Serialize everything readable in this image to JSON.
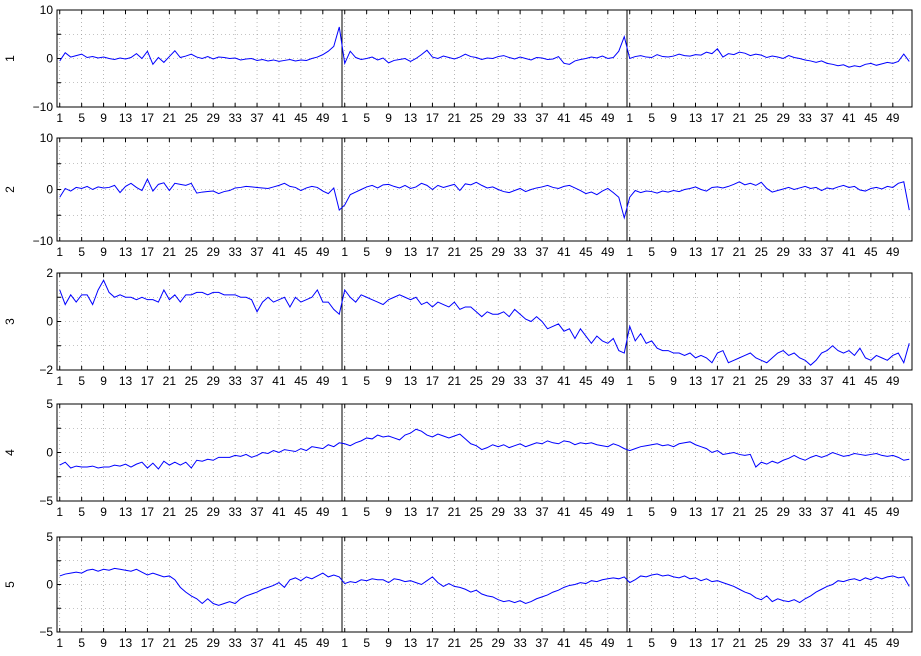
{
  "chart_data": {
    "type": "line",
    "layout": "5 stacked panels, each with 3 concatenated segments of 52 points; vertical divider lines between segments",
    "grid": "dotted",
    "line_color": "#0000ff",
    "x_tick_labels": [
      "1",
      "5",
      "9",
      "13",
      "17",
      "21",
      "25",
      "29",
      "33",
      "37",
      "41",
      "45",
      "49"
    ],
    "segments_per_panel": 3,
    "points_per_segment": 52,
    "panels": [
      {
        "ylabel": "1",
        "ylim": [
          -10,
          10
        ],
        "yticks": [
          -10,
          0,
          10
        ],
        "ytick_labels": [
          "−10",
          "0",
          "10"
        ],
        "series": [
          [
            -0.5,
            1.2,
            0.3,
            0.6,
            0.9,
            0.2,
            0.4,
            0.1,
            0.3,
            0.0,
            -0.2,
            0.1,
            -0.1,
            0.2,
            1.0,
            0.0,
            1.5,
            -1.2,
            0.2,
            -0.8,
            0.4,
            1.6,
            0.2,
            0.5,
            0.9,
            0.3,
            0.0,
            0.4,
            -0.1,
            0.3,
            0.2,
            0.0,
            0.1,
            -0.3,
            -0.1,
            0.0,
            -0.4,
            -0.2,
            -0.5,
            -0.3,
            -0.6,
            -0.4,
            -0.2,
            -0.5,
            -0.3,
            -0.4,
            0.0,
            0.3,
            0.8,
            1.5,
            2.5,
            6.5
          ],
          [
            -1.0,
            1.5,
            0.2,
            -0.2,
            0.0,
            0.3,
            -0.3,
            0.1,
            -0.9,
            -0.4,
            -0.2,
            0.0,
            -0.6,
            0.0,
            0.8,
            1.7,
            0.3,
            0.0,
            0.5,
            0.2,
            -0.1,
            0.3,
            0.9,
            0.4,
            0.2,
            -0.2,
            0.1,
            0.0,
            0.4,
            0.6,
            0.2,
            -0.1,
            0.3,
            0.0,
            -0.3,
            0.2,
            0.1,
            -0.2,
            -0.1,
            0.4,
            -1.0,
            -1.2,
            -0.5,
            -0.2,
            0.0,
            0.3,
            0.1,
            0.5,
            0.0,
            0.2,
            1.5,
            4.5
          ],
          [
            0.0,
            0.4,
            0.6,
            0.3,
            0.2,
            0.8,
            0.4,
            0.3,
            0.5,
            0.9,
            0.6,
            0.5,
            0.8,
            0.7,
            1.3,
            1.0,
            2.0,
            0.3,
            1.0,
            0.8,
            1.3,
            1.1,
            0.6,
            0.9,
            0.7,
            0.2,
            0.5,
            0.3,
            0.0,
            0.6,
            0.2,
            0.0,
            -0.3,
            -0.5,
            -0.8,
            -0.5,
            -1.0,
            -1.2,
            -1.5,
            -1.3,
            -1.8,
            -1.5,
            -1.7,
            -1.2,
            -1.0,
            -1.4,
            -1.1,
            -0.8,
            -1.0,
            -0.6,
            0.9,
            -0.6
          ]
        ]
      },
      {
        "ylabel": "2",
        "ylim": [
          -10,
          10
        ],
        "yticks": [
          -10,
          0,
          10
        ],
        "ytick_labels": [
          "−10",
          "0",
          "10"
        ],
        "series": [
          [
            -1.5,
            0.2,
            -0.3,
            0.4,
            0.2,
            0.6,
            0.0,
            0.5,
            0.3,
            0.4,
            0.8,
            -0.6,
            0.6,
            1.2,
            0.4,
            -0.2,
            2.0,
            -0.3,
            1.0,
            1.3,
            -0.2,
            1.2,
            1.0,
            0.8,
            1.2,
            -0.7,
            -0.5,
            -0.4,
            -0.3,
            -0.8,
            -0.4,
            -0.2,
            0.3,
            0.4,
            0.6,
            0.5,
            0.4,
            0.3,
            0.2,
            0.5,
            0.8,
            1.2,
            0.6,
            0.4,
            -0.2,
            0.3,
            0.6,
            0.4,
            -0.3,
            -0.8,
            0.3,
            -4.0
          ],
          [
            -3.0,
            -1.0,
            -0.5,
            0.0,
            0.5,
            0.8,
            0.3,
            0.9,
            1.0,
            0.6,
            0.3,
            0.8,
            0.2,
            0.5,
            1.2,
            0.8,
            0.0,
            0.8,
            0.4,
            0.7,
            1.0,
            -0.2,
            1.1,
            0.9,
            1.4,
            0.8,
            0.3,
            0.5,
            0.0,
            -0.4,
            -0.6,
            -0.2,
            0.2,
            -0.4,
            0.0,
            0.3,
            0.5,
            0.8,
            0.4,
            0.2,
            0.6,
            0.8,
            0.3,
            -0.2,
            -0.8,
            -0.5,
            -1.0,
            -0.3,
            0.2,
            -0.6,
            -1.5,
            -5.5
          ],
          [
            -1.5,
            -0.2,
            -0.6,
            -0.3,
            -0.4,
            -0.7,
            -0.3,
            -0.5,
            -0.2,
            -0.4,
            0.0,
            0.2,
            0.5,
            0.0,
            -0.3,
            0.4,
            0.5,
            0.3,
            0.6,
            1.0,
            1.5,
            0.9,
            1.2,
            0.8,
            1.4,
            0.2,
            -0.5,
            -0.2,
            0.1,
            0.4,
            0.0,
            0.3,
            0.6,
            0.2,
            0.4,
            -0.2,
            0.3,
            0.1,
            0.5,
            0.8,
            0.4,
            0.6,
            -0.1,
            -0.3,
            0.2,
            0.4,
            0.1,
            0.6,
            0.4,
            1.2,
            1.5,
            -4.0
          ]
        ]
      },
      {
        "ylabel": "3",
        "ylim": [
          -2,
          2
        ],
        "yticks": [
          -2,
          0,
          2
        ],
        "ytick_labels": [
          "−2",
          "0",
          "2"
        ],
        "series": [
          [
            1.3,
            0.7,
            1.1,
            0.8,
            1.1,
            1.1,
            0.7,
            1.3,
            1.7,
            1.2,
            1.0,
            1.1,
            1.0,
            1.0,
            0.9,
            1.0,
            0.9,
            0.9,
            0.8,
            1.3,
            0.9,
            1.1,
            0.8,
            1.1,
            1.1,
            1.2,
            1.2,
            1.1,
            1.2,
            1.2,
            1.1,
            1.1,
            1.1,
            1.0,
            1.0,
            0.9,
            0.4,
            0.8,
            1.0,
            0.8,
            0.9,
            1.0,
            0.6,
            1.0,
            0.8,
            0.9,
            1.0,
            1.3,
            0.8,
            0.8,
            0.5,
            0.3
          ],
          [
            1.3,
            1.0,
            0.8,
            1.1,
            1.0,
            0.9,
            0.8,
            0.7,
            0.9,
            1.0,
            1.1,
            1.0,
            0.9,
            1.0,
            0.7,
            0.8,
            0.6,
            0.8,
            0.7,
            0.6,
            0.8,
            0.5,
            0.6,
            0.6,
            0.4,
            0.2,
            0.4,
            0.3,
            0.3,
            0.4,
            0.2,
            0.5,
            0.3,
            0.1,
            0.0,
            0.2,
            0.0,
            -0.3,
            -0.2,
            -0.1,
            -0.4,
            -0.3,
            -0.7,
            -0.3,
            -0.6,
            -0.9,
            -0.6,
            -0.8,
            -0.9,
            -0.7,
            -1.2,
            -1.3
          ],
          [
            -0.2,
            -0.8,
            -0.5,
            -0.9,
            -0.8,
            -1.1,
            -1.2,
            -1.2,
            -1.3,
            -1.3,
            -1.4,
            -1.3,
            -1.5,
            -1.4,
            -1.5,
            -1.7,
            -1.3,
            -1.2,
            -1.7,
            -1.6,
            -1.5,
            -1.4,
            -1.3,
            -1.5,
            -1.6,
            -1.7,
            -1.5,
            -1.3,
            -1.2,
            -1.4,
            -1.3,
            -1.5,
            -1.6,
            -1.8,
            -1.6,
            -1.3,
            -1.2,
            -1.0,
            -1.2,
            -1.3,
            -1.2,
            -1.4,
            -1.1,
            -1.5,
            -1.6,
            -1.4,
            -1.5,
            -1.6,
            -1.4,
            -1.3,
            -1.7,
            -0.9
          ]
        ]
      },
      {
        "ylabel": "4",
        "ylim": [
          -5,
          5
        ],
        "yticks": [
          -5,
          0,
          5
        ],
        "ytick_labels": [
          "−5",
          "0",
          "5"
        ],
        "series": [
          [
            -1.3,
            -1.0,
            -1.6,
            -1.4,
            -1.5,
            -1.5,
            -1.4,
            -1.6,
            -1.5,
            -1.5,
            -1.3,
            -1.4,
            -1.2,
            -1.5,
            -1.2,
            -1.0,
            -1.6,
            -1.1,
            -1.7,
            -0.9,
            -1.3,
            -1.0,
            -1.3,
            -1.0,
            -1.6,
            -0.8,
            -0.9,
            -0.7,
            -0.8,
            -0.5,
            -0.5,
            -0.5,
            -0.3,
            -0.4,
            -0.2,
            -0.5,
            -0.3,
            0.0,
            -0.1,
            0.2,
            0.0,
            0.3,
            0.2,
            0.1,
            0.4,
            0.2,
            0.6,
            0.5,
            0.4,
            0.8,
            0.6,
            1.0
          ],
          [
            0.9,
            0.7,
            1.0,
            1.2,
            1.5,
            1.4,
            1.8,
            1.6,
            1.7,
            1.5,
            1.3,
            1.8,
            2.0,
            2.4,
            2.2,
            1.8,
            1.6,
            1.9,
            1.7,
            1.5,
            1.7,
            1.9,
            1.4,
            0.9,
            0.7,
            0.3,
            0.5,
            0.8,
            0.6,
            0.8,
            0.5,
            0.7,
            0.9,
            0.6,
            0.8,
            1.0,
            0.9,
            1.2,
            1.0,
            0.9,
            1.2,
            1.1,
            0.8,
            1.0,
            0.9,
            1.0,
            0.8,
            0.7,
            0.6,
            0.9,
            0.7,
            0.4
          ],
          [
            0.2,
            0.4,
            0.6,
            0.7,
            0.8,
            0.9,
            0.7,
            0.8,
            0.6,
            0.9,
            1.0,
            1.1,
            0.8,
            0.6,
            0.4,
            0.0,
            0.2,
            -0.2,
            -0.1,
            0.0,
            -0.2,
            -0.3,
            -0.2,
            -1.5,
            -1.0,
            -1.2,
            -0.9,
            -1.1,
            -0.8,
            -0.6,
            -0.3,
            -0.6,
            -0.8,
            -0.5,
            -0.3,
            -0.5,
            -0.3,
            0.0,
            -0.2,
            -0.4,
            -0.3,
            -0.1,
            -0.2,
            -0.3,
            -0.2,
            -0.1,
            -0.3,
            -0.4,
            -0.3,
            -0.5,
            -0.8,
            -0.7
          ]
        ]
      },
      {
        "ylabel": "5",
        "ylim": [
          -5,
          5
        ],
        "yticks": [
          -5,
          0,
          5
        ],
        "ytick_labels": [
          "−5",
          "0",
          "5"
        ],
        "series": [
          [
            0.9,
            1.1,
            1.2,
            1.3,
            1.2,
            1.5,
            1.6,
            1.4,
            1.6,
            1.5,
            1.7,
            1.6,
            1.5,
            1.4,
            1.6,
            1.3,
            1.0,
            1.2,
            1.0,
            0.8,
            0.9,
            0.5,
            -0.3,
            -0.8,
            -1.2,
            -1.5,
            -2.0,
            -1.5,
            -2.0,
            -2.2,
            -2.0,
            -1.8,
            -2.0,
            -1.5,
            -1.2,
            -1.0,
            -0.8,
            -0.5,
            -0.3,
            -0.1,
            0.2,
            -0.3,
            0.5,
            0.7,
            0.4,
            0.8,
            0.6,
            0.9,
            1.2,
            0.8,
            1.0,
            0.8
          ],
          [
            0.1,
            0.3,
            0.2,
            0.5,
            0.4,
            0.6,
            0.5,
            0.5,
            0.2,
            0.6,
            0.5,
            0.3,
            0.4,
            0.2,
            0.0,
            0.4,
            0.8,
            0.2,
            -0.2,
            0.1,
            -0.2,
            -0.3,
            -0.5,
            -0.8,
            -0.6,
            -1.0,
            -1.2,
            -1.3,
            -1.6,
            -1.8,
            -1.7,
            -1.9,
            -1.7,
            -2.0,
            -1.8,
            -1.5,
            -1.3,
            -1.1,
            -0.8,
            -0.6,
            -0.3,
            -0.1,
            0.0,
            0.2,
            0.1,
            0.4,
            0.3,
            0.5,
            0.6,
            0.7,
            0.6,
            0.8
          ],
          [
            0.2,
            0.5,
            0.9,
            0.8,
            1.0,
            1.1,
            0.9,
            1.0,
            0.8,
            0.7,
            0.9,
            0.6,
            0.7,
            0.4,
            0.6,
            0.3,
            0.4,
            0.2,
            0.0,
            -0.2,
            -0.5,
            -0.8,
            -1.0,
            -1.4,
            -1.6,
            -1.2,
            -1.8,
            -1.5,
            -1.7,
            -1.8,
            -1.6,
            -1.9,
            -1.5,
            -1.2,
            -0.8,
            -0.5,
            -0.2,
            0.0,
            0.4,
            0.3,
            0.5,
            0.6,
            0.4,
            0.7,
            0.5,
            0.8,
            0.6,
            0.8,
            0.9,
            0.7,
            0.8,
            -0.2
          ]
        ]
      }
    ]
  }
}
